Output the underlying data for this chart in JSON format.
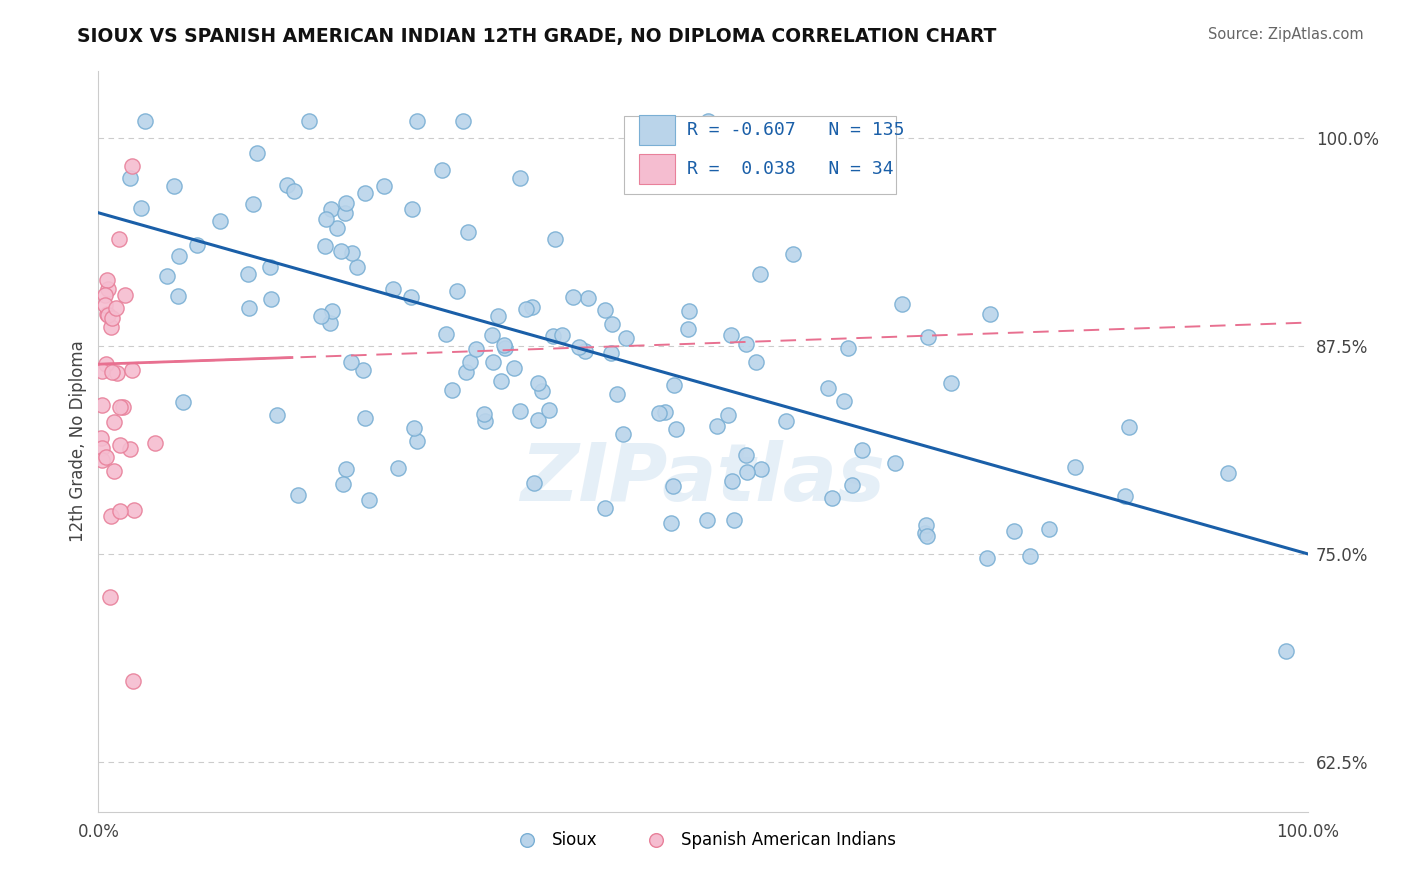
{
  "title": "SIOUX VS SPANISH AMERICAN INDIAN 12TH GRADE, NO DIPLOMA CORRELATION CHART",
  "source": "Source: ZipAtlas.com",
  "ylabel": "12th Grade, No Diploma",
  "legend_label1": "Sioux",
  "legend_label2": "Spanish American Indians",
  "R1": -0.607,
  "N1": 135,
  "R2": 0.038,
  "N2": 34,
  "xlim": [
    0.0,
    1.0
  ],
  "ylim": [
    0.595,
    1.04
  ],
  "x_ticks": [
    0.0,
    1.0
  ],
  "x_tick_labels": [
    "0.0%",
    "100.0%"
  ],
  "y_ticks": [
    0.625,
    0.75,
    0.875,
    1.0
  ],
  "y_tick_labels": [
    "62.5%",
    "75.0%",
    "87.5%",
    "100.0%"
  ],
  "blue_color": "#bad4ea",
  "blue_edge": "#7aafd4",
  "pink_color": "#f5bdd0",
  "pink_edge": "#e8809a",
  "trend_blue": "#1a5fa8",
  "trend_pink": "#e87090",
  "watermark": "ZIPatlas",
  "background": "#ffffff",
  "figsize": [
    14.06,
    8.92
  ],
  "dpi": 100
}
